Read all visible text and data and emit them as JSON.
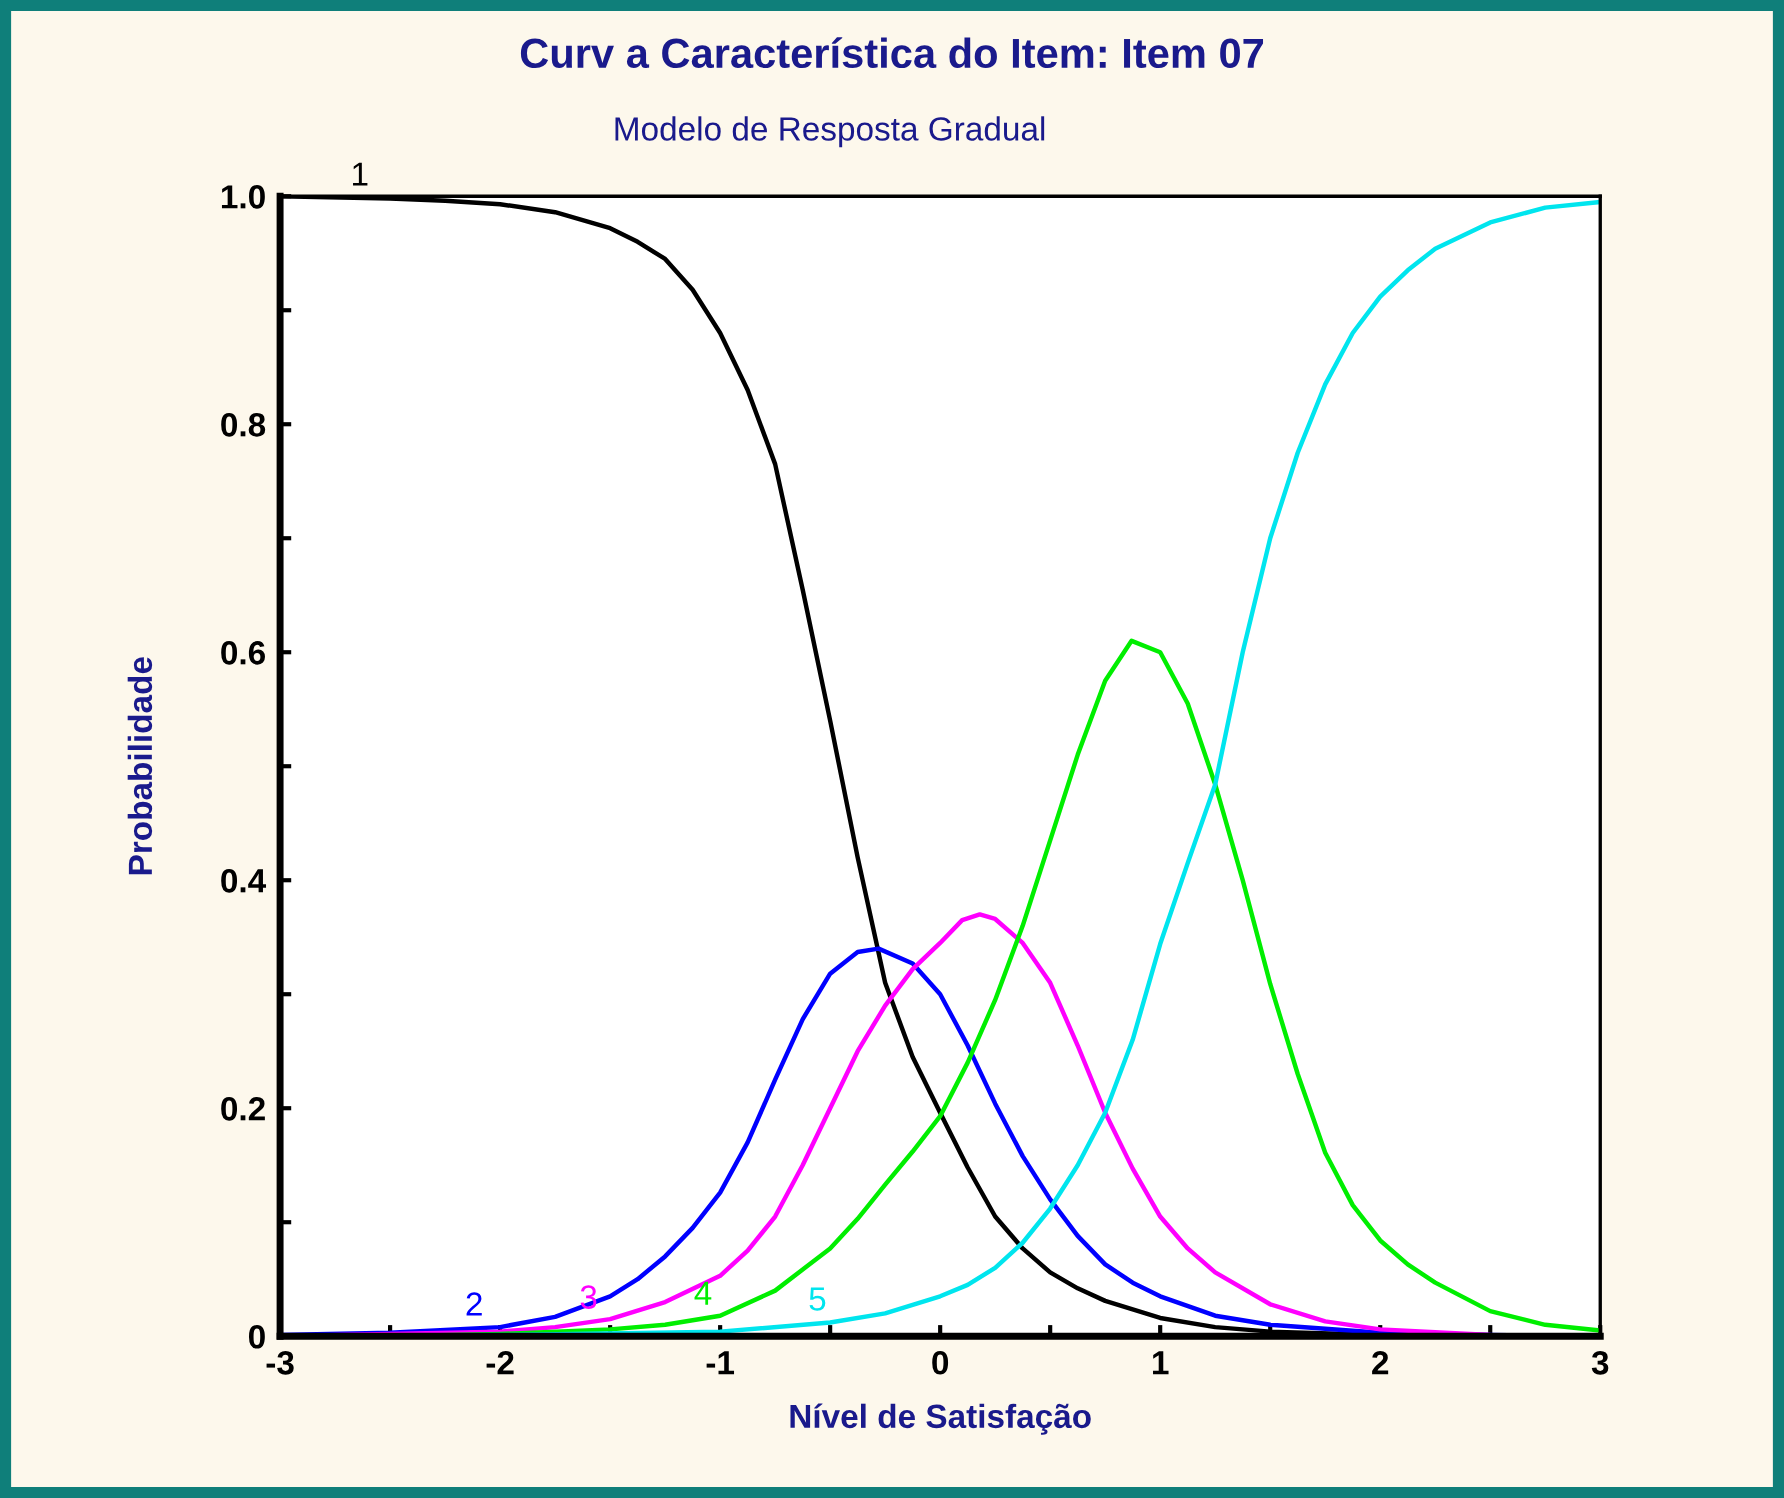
{
  "chart_data": {
    "type": "line",
    "title": "Curv a Característica do Item: Item 07",
    "subtitle": "Modelo de Resposta Gradual",
    "xlabel": "Nível de Satisfação",
    "ylabel": "Probabilidade",
    "xlim": [
      -3,
      3
    ],
    "ylim": [
      0,
      1
    ],
    "xticks": [
      -3,
      {
        "value": -2.5,
        "label": null
      },
      -2,
      {
        "value": -1.5,
        "label": null
      },
      -1,
      {
        "value": -0.5,
        "label": null
      },
      0,
      {
        "value": 0.5,
        "label": null
      },
      1,
      {
        "value": 1.5,
        "label": null
      },
      2,
      {
        "value": 2.5,
        "label": null
      },
      3
    ],
    "yticks": [
      0,
      {
        "value": 0.1,
        "label": null
      },
      0.2,
      {
        "value": 0.3,
        "label": null
      },
      0.4,
      {
        "value": 0.5,
        "label": null
      },
      0.6,
      {
        "value": 0.7,
        "label": null
      },
      0.8,
      {
        "value": 0.9,
        "label": null
      },
      {
        "value": 1.0,
        "label": "1.0"
      }
    ],
    "grid": false,
    "legend": false,
    "marker": "none",
    "line_style": "solid",
    "series": [
      {
        "name": "1",
        "color": "#000000",
        "x": [
          -3,
          -2.5,
          -2.25,
          -2,
          -1.75,
          -1.5,
          -1.375,
          -1.25,
          -1.125,
          -1,
          -0.875,
          -0.75,
          -0.625,
          -0.5,
          -0.375,
          -0.25,
          -0.125,
          0,
          0.125,
          0.25,
          0.375,
          0.5,
          0.625,
          0.75,
          1,
          1.25,
          1.5,
          2,
          2.5,
          3
        ],
        "values": [
          1.0,
          0.998,
          0.996,
          0.993,
          0.986,
          0.972,
          0.96,
          0.945,
          0.918,
          0.88,
          0.83,
          0.765,
          0.655,
          0.54,
          0.42,
          0.31,
          0.245,
          0.196,
          0.148,
          0.105,
          0.077,
          0.056,
          0.042,
          0.031,
          0.016,
          0.008,
          0.004,
          0.001,
          0.0,
          0.0
        ]
      },
      {
        "name": "2",
        "color": "#0000ff",
        "x": [
          -3,
          -2.5,
          -2,
          -1.75,
          -1.5,
          -1.375,
          -1.25,
          -1.125,
          -1,
          -0.875,
          -0.75,
          -0.625,
          -0.5,
          -0.375,
          -0.28,
          -0.125,
          0,
          0.125,
          0.25,
          0.375,
          0.5,
          0.625,
          0.75,
          0.875,
          1,
          1.25,
          1.5,
          2,
          2.5,
          3
        ],
        "values": [
          0.001,
          0.003,
          0.008,
          0.017,
          0.035,
          0.05,
          0.07,
          0.095,
          0.126,
          0.17,
          0.225,
          0.278,
          0.318,
          0.337,
          0.34,
          0.327,
          0.3,
          0.255,
          0.204,
          0.158,
          0.12,
          0.088,
          0.063,
          0.047,
          0.035,
          0.018,
          0.01,
          0.003,
          0.001,
          0.0
        ]
      },
      {
        "name": "3",
        "color": "#ff00ff",
        "x": [
          -3,
          -2.5,
          -2,
          -1.75,
          -1.5,
          -1.25,
          -1,
          -0.875,
          -0.75,
          -0.625,
          -0.5,
          -0.375,
          -0.25,
          -0.125,
          0,
          0.1,
          0.18,
          0.25,
          0.375,
          0.5,
          0.625,
          0.75,
          0.875,
          1,
          1.125,
          1.25,
          1.5,
          1.75,
          2,
          2.5,
          3
        ],
        "values": [
          0.0,
          null,
          0.004,
          0.008,
          0.015,
          0.03,
          0.053,
          0.075,
          0.105,
          0.15,
          0.2,
          0.25,
          0.29,
          0.322,
          0.345,
          0.365,
          0.37,
          0.366,
          0.345,
          0.31,
          0.255,
          0.196,
          0.147,
          0.105,
          0.077,
          0.056,
          0.028,
          0.013,
          0.006,
          0.001,
          0.0
        ]
      },
      {
        "name": "4",
        "color": "#00ee00",
        "x": [
          -3,
          -2.5,
          -2,
          -1.5,
          -1.25,
          -1,
          -0.75,
          -0.5,
          -0.375,
          -0.25,
          -0.125,
          0,
          0.125,
          0.25,
          0.375,
          0.5,
          0.625,
          0.75,
          0.87,
          1,
          1.125,
          1.25,
          1.375,
          1.5,
          1.625,
          1.75,
          1.875,
          2,
          2.125,
          2.25,
          2.5,
          2.75,
          3
        ],
        "values": [
          0.0,
          0.0,
          0.002,
          0.006,
          0.01,
          0.018,
          0.04,
          0.077,
          0.103,
          0.133,
          0.162,
          0.193,
          0.24,
          0.295,
          0.36,
          0.435,
          0.51,
          0.575,
          0.61,
          0.6,
          0.555,
          0.484,
          0.4,
          0.309,
          0.23,
          0.161,
          0.115,
          0.084,
          0.063,
          0.047,
          0.022,
          0.01,
          0.005
        ]
      },
      {
        "name": "5",
        "color": "#00e5ee",
        "x": [
          -3,
          -2,
          -1,
          -0.5,
          -0.25,
          0,
          0.125,
          0.25,
          0.375,
          0.5,
          0.625,
          0.75,
          0.875,
          1,
          1.125,
          1.25,
          1.375,
          1.5,
          1.625,
          1.75,
          1.875,
          2,
          2.125,
          2.25,
          2.5,
          2.75,
          3
        ],
        "values": [
          0.0,
          0.001,
          0.004,
          0.012,
          0.02,
          0.035,
          0.045,
          0.06,
          0.082,
          0.112,
          0.15,
          0.196,
          0.26,
          0.344,
          0.415,
          0.484,
          0.6,
          0.7,
          0.775,
          0.835,
          0.88,
          0.912,
          0.935,
          0.954,
          0.977,
          0.99,
          0.995
        ]
      }
    ]
  }
}
